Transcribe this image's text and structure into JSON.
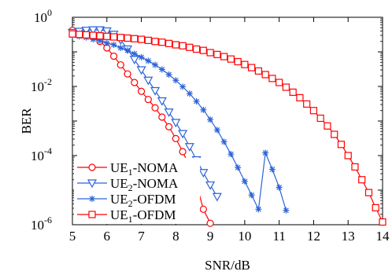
{
  "chart_data": {
    "type": "line",
    "xlabel": "SNR/dB",
    "ylabel": "BER",
    "xlim": [
      5,
      14
    ],
    "ylim_log10": [
      -6,
      0
    ],
    "yscale": "log",
    "grid": false,
    "legend_placement": "bottom-left",
    "x_ticks": [
      "5",
      "6",
      "7",
      "8",
      "9",
      "10",
      "11",
      "12",
      "13",
      "14"
    ],
    "y_ticks": [
      {
        "base": "10",
        "exp": "0"
      },
      {
        "base": "10",
        "exp": "-2"
      },
      {
        "base": "10",
        "exp": "-4"
      },
      {
        "base": "10",
        "exp": "-6"
      }
    ],
    "series": [
      {
        "name": "UE1-NOMA",
        "legend_main": "UE",
        "legend_sub": "1",
        "legend_rest": "-NOMA",
        "color": "#ff0000",
        "marker": "circle",
        "x": [
          5.0,
          5.2,
          5.4,
          5.6,
          5.8,
          6.0,
          6.2,
          6.4,
          6.6,
          6.8,
          7.0,
          7.2,
          7.4,
          7.6,
          7.8,
          8.0,
          8.2,
          8.4,
          8.6,
          8.8,
          9.0
        ],
        "y": [
          0.42,
          0.38,
          0.33,
          0.27,
          0.2,
          0.13,
          0.075,
          0.042,
          0.023,
          0.013,
          0.0072,
          0.0042,
          0.0024,
          0.0013,
          0.00068,
          0.00031,
          0.00013,
          4.8e-05,
          1.5e-05,
          2.8e-06,
          1.1e-06
        ]
      },
      {
        "name": "UE2-NOMA",
        "legend_main": "UE",
        "legend_sub": "2",
        "legend_rest": "-NOMA",
        "color": "#2a63d9",
        "marker": "triangle-down",
        "x": [
          5.0,
          5.2,
          5.4,
          5.6,
          5.8,
          6.0,
          6.2,
          6.4,
          6.6,
          6.8,
          7.0,
          7.2,
          7.4,
          7.6,
          7.8,
          8.0,
          8.2,
          8.4,
          8.6,
          8.8,
          9.0,
          9.2
        ],
        "y": [
          0.36,
          0.39,
          0.42,
          0.43,
          0.43,
          0.4,
          0.32,
          0.22,
          0.12,
          0.06,
          0.03,
          0.015,
          0.0075,
          0.0038,
          0.0018,
          0.0009,
          0.00043,
          0.00018,
          7.5e-05,
          3.2e-05,
          1.4e-05,
          6.5e-06
        ]
      },
      {
        "name": "UE2-OFDM",
        "legend_main": "UE",
        "legend_sub": "2",
        "legend_rest": "-OFDM",
        "color": "#2a63d9",
        "marker": "asterisk",
        "x": [
          5.0,
          5.2,
          5.4,
          5.6,
          5.8,
          6.0,
          6.2,
          6.4,
          6.6,
          6.8,
          7.0,
          7.2,
          7.4,
          7.6,
          7.8,
          8.0,
          8.2,
          8.4,
          8.6,
          8.8,
          9.0,
          9.2,
          9.4,
          9.6,
          9.8,
          10.0,
          10.2,
          10.4,
          10.6,
          10.8,
          11.0,
          11.2
        ],
        "y": [
          0.3,
          0.28,
          0.26,
          0.23,
          0.21,
          0.18,
          0.16,
          0.13,
          0.11,
          0.088,
          0.07,
          0.055,
          0.042,
          0.031,
          0.022,
          0.015,
          0.0098,
          0.0062,
          0.0037,
          0.0021,
          0.0011,
          0.00055,
          0.00025,
          0.00011,
          4.5e-05,
          1.8e-05,
          7.2e-06,
          2.8e-06,
          0.00012,
          4e-05,
          1.2e-05,
          2.6e-06
        ]
      },
      {
        "name": "UE1-OFDM",
        "legend_main": "UE",
        "legend_sub": "1",
        "legend_rest": "-OFDM",
        "color": "#ff0000",
        "marker": "square",
        "x": [
          5.0,
          5.2,
          5.4,
          5.6,
          5.8,
          6.0,
          6.2,
          6.4,
          6.6,
          6.8,
          7.0,
          7.2,
          7.4,
          7.6,
          7.8,
          8.0,
          8.2,
          8.4,
          8.6,
          8.8,
          9.0,
          9.2,
          9.4,
          9.6,
          9.8,
          10.0,
          10.2,
          10.4,
          10.6,
          10.8,
          11.0,
          11.2,
          11.4,
          11.6,
          11.8,
          12.0,
          12.2,
          12.4,
          12.6,
          12.8,
          13.0,
          13.2,
          13.4,
          13.6,
          13.8,
          14.0
        ],
        "y": [
          0.33,
          0.32,
          0.31,
          0.3,
          0.29,
          0.28,
          0.27,
          0.26,
          0.25,
          0.24,
          0.23,
          0.215,
          0.2,
          0.19,
          0.175,
          0.16,
          0.15,
          0.135,
          0.12,
          0.11,
          0.095,
          0.084,
          0.073,
          0.062,
          0.052,
          0.043,
          0.035,
          0.028,
          0.022,
          0.017,
          0.013,
          0.0095,
          0.0068,
          0.0047,
          0.0031,
          0.002,
          0.0012,
          0.00072,
          0.00041,
          0.00021,
          0.0001,
          4.7e-05,
          2e-05,
          8.5e-06,
          3.1e-06,
          1.2e-06
        ]
      }
    ]
  }
}
